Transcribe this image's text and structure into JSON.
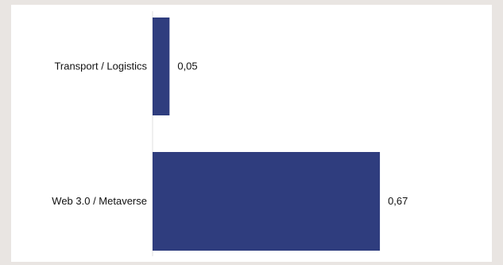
{
  "chart_data": {
    "type": "bar",
    "orientation": "horizontal",
    "categories": [
      "Transport / Logistics",
      "Web 3.0 / Metaverse"
    ],
    "values": [
      0.05,
      0.67
    ],
    "value_labels": [
      "0,05",
      "0,67"
    ],
    "bar_color": "#2f3d7e",
    "axis_line_color": "#e2e2e2",
    "grid": false,
    "legend": "none"
  }
}
